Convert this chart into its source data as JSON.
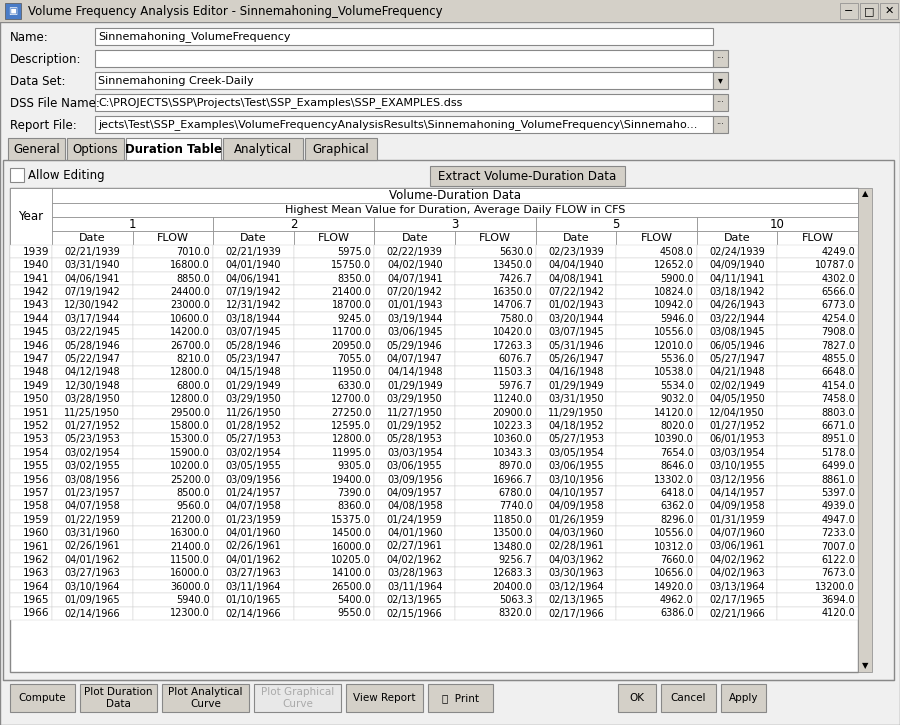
{
  "title": "Volume Frequency Analysis Editor - Sinnemahoning_VolumeFrequency",
  "name_value": "Sinnemahoning_VolumeFrequency",
  "description_value": "",
  "dataset_value": "Sinnemahoning Creek-Daily",
  "dss_file": "C:\\PROJECTS\\SSP\\Projects\\Test\\SSP_Examples\\SSP_EXAMPLES.dss",
  "report_file": "jects\\Test\\SSP_Examples\\VolumeFrequencyAnalysisResults\\Sinnemahoning_VolumeFrequency\\Sinnemaho...",
  "tabs": [
    "General",
    "Options",
    "Duration Table",
    "Analytical",
    "Graphical"
  ],
  "active_tab": "Duration Table",
  "table_title1": "Volume-Duration Data",
  "table_title2": "Highest Mean Value for Duration, Average Daily FLOW in CFS",
  "duration_cols": [
    "1",
    "2",
    "3",
    "5",
    "10"
  ],
  "sub_cols": [
    "Date",
    "FLOW"
  ],
  "rows": [
    [
      1939,
      "02/21/1939",
      7010.0,
      "02/21/1939",
      5975.0,
      "02/22/1939",
      5630.0,
      "02/23/1939",
      4508.0,
      "02/24/1939",
      4249.0
    ],
    [
      1940,
      "03/31/1940",
      16800.0,
      "04/01/1940",
      15750.0,
      "04/02/1940",
      13450.0,
      "04/04/1940",
      12652.0,
      "04/09/1940",
      10787.0
    ],
    [
      1941,
      "04/06/1941",
      8850.0,
      "04/06/1941",
      8350.0,
      "04/07/1941",
      7426.7,
      "04/08/1941",
      5900.0,
      "04/11/1941",
      4302.0
    ],
    [
      1942,
      "07/19/1942",
      24400.0,
      "07/19/1942",
      21400.0,
      "07/20/1942",
      16350.0,
      "07/22/1942",
      10824.0,
      "03/18/1942",
      6566.0
    ],
    [
      1943,
      "12/30/1942",
      23000.0,
      "12/31/1942",
      18700.0,
      "01/01/1943",
      14706.7,
      "01/02/1943",
      10942.0,
      "04/26/1943",
      6773.0
    ],
    [
      1944,
      "03/17/1944",
      10600.0,
      "03/18/1944",
      9245.0,
      "03/19/1944",
      7580.0,
      "03/20/1944",
      5946.0,
      "03/22/1944",
      4254.0
    ],
    [
      1945,
      "03/22/1945",
      14200.0,
      "03/07/1945",
      11700.0,
      "03/06/1945",
      10420.0,
      "03/07/1945",
      10556.0,
      "03/08/1945",
      7908.0
    ],
    [
      1946,
      "05/28/1946",
      26700.0,
      "05/28/1946",
      20950.0,
      "05/29/1946",
      17263.3,
      "05/31/1946",
      12010.0,
      "06/05/1946",
      7827.0
    ],
    [
      1947,
      "05/22/1947",
      8210.0,
      "05/23/1947",
      7055.0,
      "04/07/1947",
      6076.7,
      "05/26/1947",
      5536.0,
      "05/27/1947",
      4855.0
    ],
    [
      1948,
      "04/12/1948",
      12800.0,
      "04/15/1948",
      11950.0,
      "04/14/1948",
      11503.3,
      "04/16/1948",
      10538.0,
      "04/21/1948",
      6648.0
    ],
    [
      1949,
      "12/30/1948",
      6800.0,
      "01/29/1949",
      6330.0,
      "01/29/1949",
      5976.7,
      "01/29/1949",
      5534.0,
      "02/02/1949",
      4154.0
    ],
    [
      1950,
      "03/28/1950",
      12800.0,
      "03/29/1950",
      12700.0,
      "03/29/1950",
      11240.0,
      "03/31/1950",
      9032.0,
      "04/05/1950",
      7458.0
    ],
    [
      1951,
      "11/25/1950",
      29500.0,
      "11/26/1950",
      27250.0,
      "11/27/1950",
      20900.0,
      "11/29/1950",
      14120.0,
      "12/04/1950",
      8803.0
    ],
    [
      1952,
      "01/27/1952",
      15800.0,
      "01/28/1952",
      12595.0,
      "01/29/1952",
      10223.3,
      "04/18/1952",
      8020.0,
      "01/27/1952",
      6671.0
    ],
    [
      1953,
      "05/23/1953",
      15300.0,
      "05/27/1953",
      12800.0,
      "05/28/1953",
      10360.0,
      "05/27/1953",
      10390.0,
      "06/01/1953",
      8951.0
    ],
    [
      1954,
      "03/02/1954",
      15900.0,
      "03/02/1954",
      11995.0,
      "03/03/1954",
      10343.3,
      "03/05/1954",
      7654.0,
      "03/03/1954",
      5178.0
    ],
    [
      1955,
      "03/02/1955",
      10200.0,
      "03/05/1955",
      9305.0,
      "03/06/1955",
      8970.0,
      "03/06/1955",
      8646.0,
      "03/10/1955",
      6499.0
    ],
    [
      1956,
      "03/08/1956",
      25200.0,
      "03/09/1956",
      19400.0,
      "03/09/1956",
      16966.7,
      "03/10/1956",
      13302.0,
      "03/12/1956",
      8861.0
    ],
    [
      1957,
      "01/23/1957",
      8500.0,
      "01/24/1957",
      7390.0,
      "04/09/1957",
      6780.0,
      "04/10/1957",
      6418.0,
      "04/14/1957",
      5397.0
    ],
    [
      1958,
      "04/07/1958",
      9560.0,
      "04/07/1958",
      8360.0,
      "04/08/1958",
      7740.0,
      "04/09/1958",
      6362.0,
      "04/09/1958",
      4939.0
    ],
    [
      1959,
      "01/22/1959",
      21200.0,
      "01/23/1959",
      15375.0,
      "01/24/1959",
      11850.0,
      "01/26/1959",
      8296.0,
      "01/31/1959",
      4947.0
    ],
    [
      1960,
      "03/31/1960",
      16300.0,
      "04/01/1960",
      14500.0,
      "04/01/1960",
      13500.0,
      "04/03/1960",
      10556.0,
      "04/07/1960",
      7233.0
    ],
    [
      1961,
      "02/26/1961",
      21400.0,
      "02/26/1961",
      16000.0,
      "02/27/1961",
      13480.0,
      "02/28/1961",
      10312.0,
      "03/06/1961",
      7007.0
    ],
    [
      1962,
      "04/01/1962",
      11500.0,
      "04/01/1962",
      10205.0,
      "04/02/1962",
      9256.7,
      "04/03/1962",
      7660.0,
      "04/02/1962",
      6122.0
    ],
    [
      1963,
      "03/27/1963",
      16000.0,
      "03/27/1963",
      14100.0,
      "03/28/1963",
      12683.3,
      "03/30/1963",
      10656.0,
      "04/02/1963",
      7673.0
    ],
    [
      1964,
      "03/10/1964",
      36000.0,
      "03/11/1964",
      26500.0,
      "03/11/1964",
      20400.0,
      "03/12/1964",
      14920.0,
      "03/13/1964",
      13200.0
    ],
    [
      1965,
      "01/09/1965",
      5940.0,
      "01/10/1965",
      5400.0,
      "02/13/1965",
      5063.3,
      "02/13/1965",
      4962.0,
      "02/17/1965",
      3694.0
    ],
    [
      1966,
      "02/14/1966",
      12300.0,
      "02/14/1966",
      9550.0,
      "02/15/1966",
      8320.0,
      "02/17/1966",
      6386.0,
      "02/21/1966",
      4120.0
    ]
  ]
}
